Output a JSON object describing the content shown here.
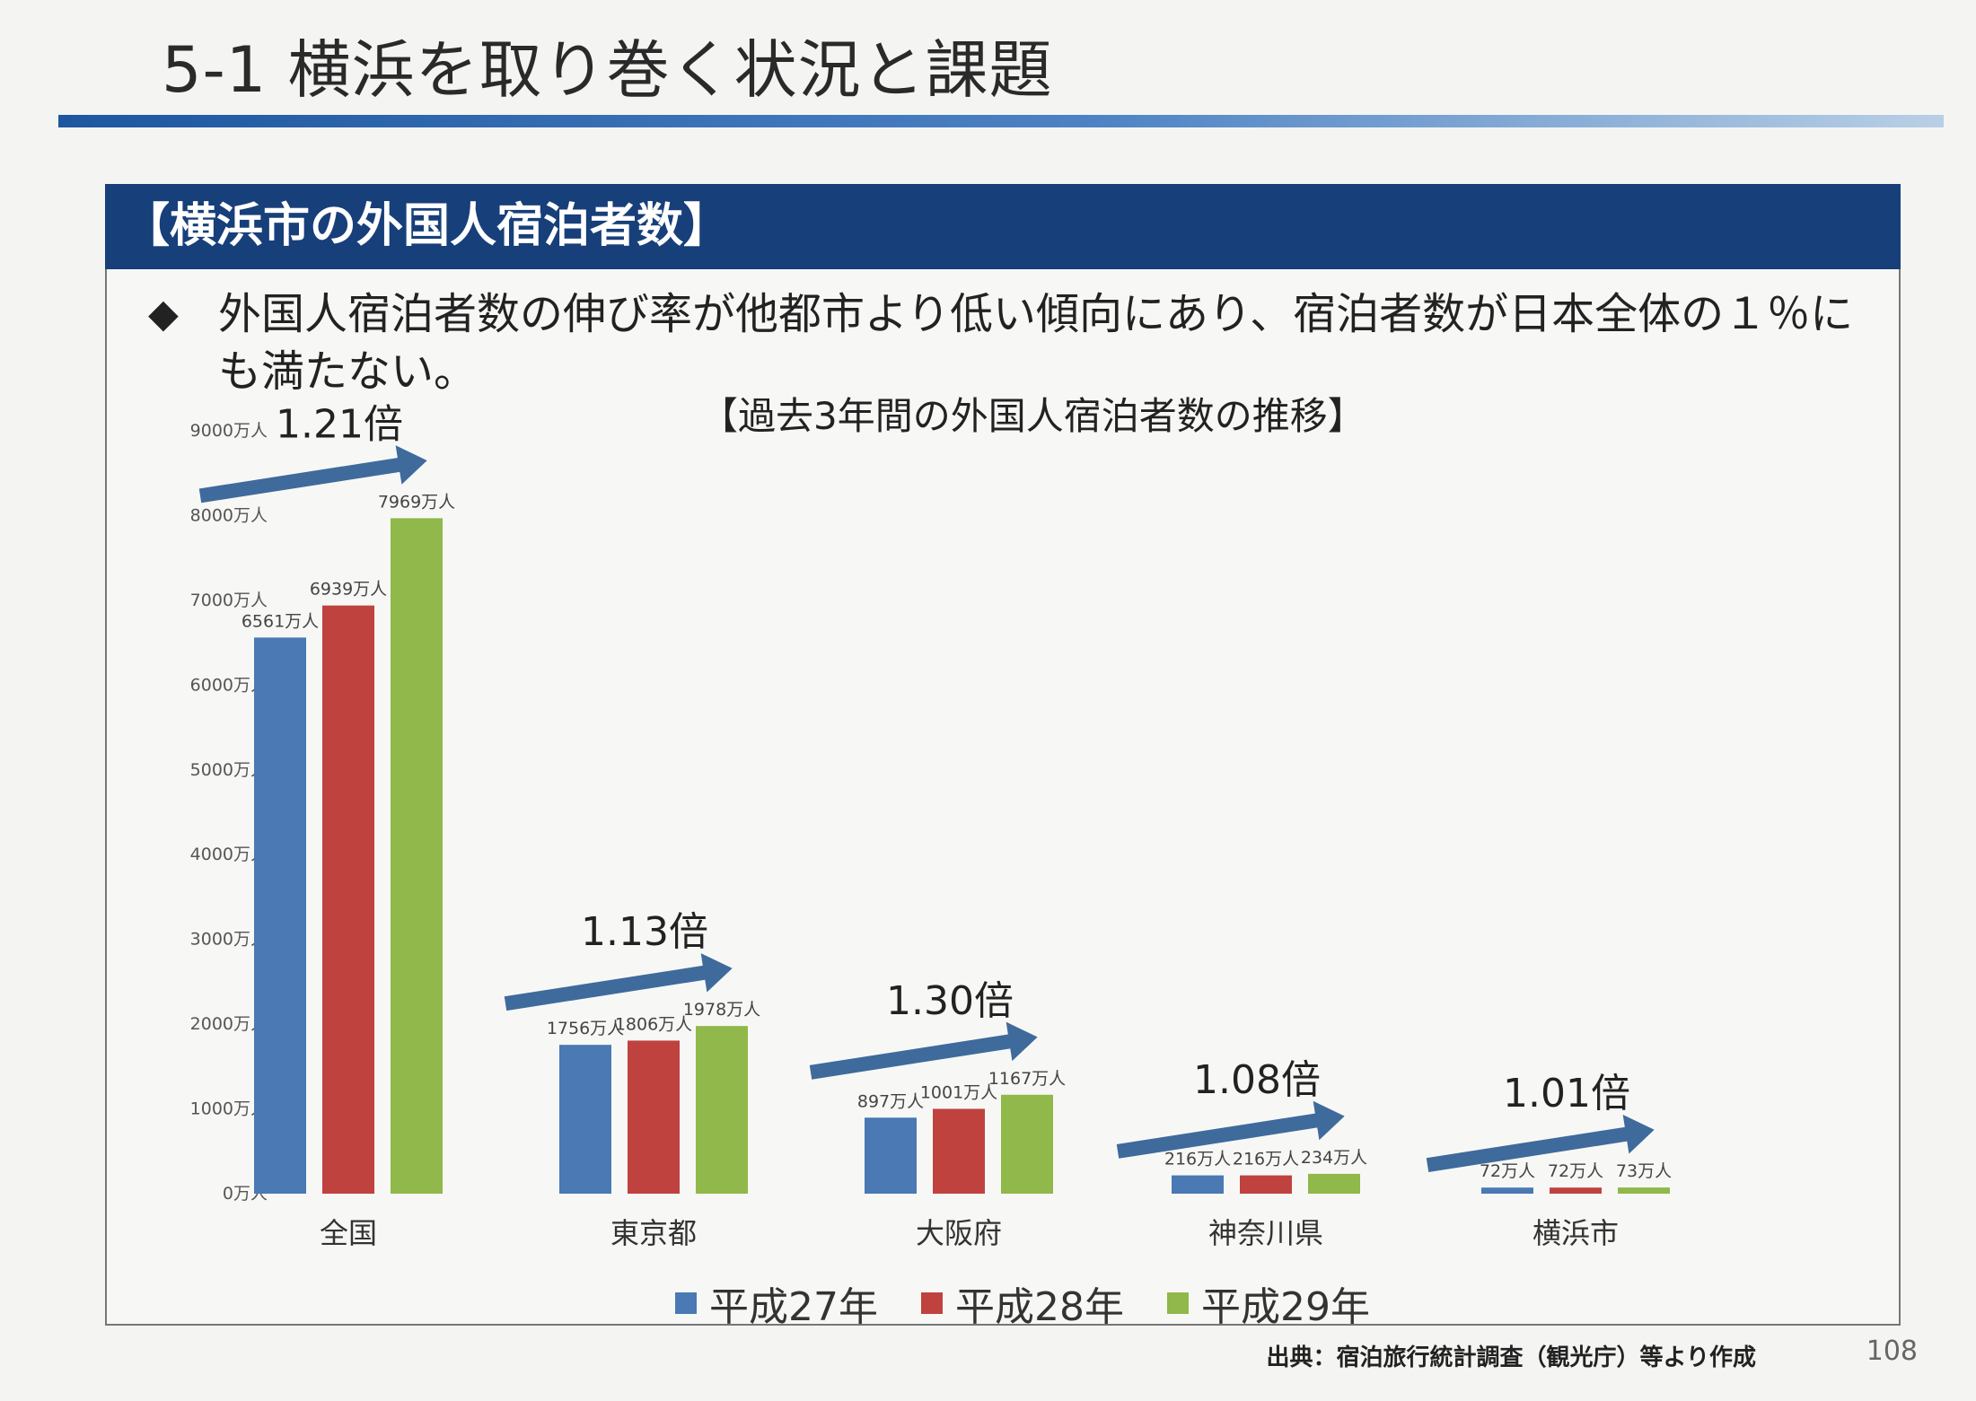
{
  "slide_title": "5-1  横浜を取り巻く状況と課題",
  "panel_header": "【横浜市の外国人宿泊者数】",
  "bullet": {
    "mark": "◆",
    "text": "外国人宿泊者数の伸び率が他都市より低い傾向にあり、宿泊者数が日本全体の１％にも満たない。"
  },
  "source_note": "出典：宿泊旅行統計調査（観光庁）等より作成",
  "page_number": "108",
  "colors": {
    "series1": "#4a79b3",
    "series2": "#c0423f",
    "series3": "#90b84a",
    "arrow": "#3f6a9c"
  },
  "chart_data": {
    "type": "bar",
    "title": "【過去3年間の外国人宿泊者数の推移】",
    "categories": [
      "全国",
      "東京都",
      "大阪府",
      "神奈川県",
      "横浜市"
    ],
    "series": [
      {
        "name": "平成27年",
        "values": [
          6561,
          1756,
          897,
          216,
          72
        ],
        "labels": [
          "6561万人",
          "1756万人",
          "897万人",
          "216万人",
          "72万人"
        ]
      },
      {
        "name": "平成28年",
        "values": [
          6939,
          1806,
          1001,
          216,
          72
        ],
        "labels": [
          "6939万人",
          "1806万人",
          "1001万人",
          "216万人",
          "72万人"
        ]
      },
      {
        "name": "平成29年",
        "values": [
          7969,
          1978,
          1167,
          234,
          73
        ],
        "labels": [
          "7969万人",
          "1978万人",
          "1167万人",
          "234万人",
          "73万人"
        ]
      }
    ],
    "growth_labels": [
      "1.21倍",
      "1.13倍",
      "1.30倍",
      "1.08倍",
      "1.01倍"
    ],
    "ylim": [
      0,
      9000
    ],
    "yticks": [
      {
        "value": 0,
        "label": "0万人"
      },
      {
        "value": 1000,
        "label": "1000万人"
      },
      {
        "value": 2000,
        "label": "2000万人"
      },
      {
        "value": 3000,
        "label": "3000万人"
      },
      {
        "value": 4000,
        "label": "4000万人"
      },
      {
        "value": 5000,
        "label": "5000万人"
      },
      {
        "value": 6000,
        "label": "6000万人"
      },
      {
        "value": 7000,
        "label": "7000万人"
      },
      {
        "value": 8000,
        "label": "8000万人"
      },
      {
        "value": 9000,
        "label": "9000万人"
      }
    ],
    "grid": false,
    "legend_position": "bottom"
  }
}
